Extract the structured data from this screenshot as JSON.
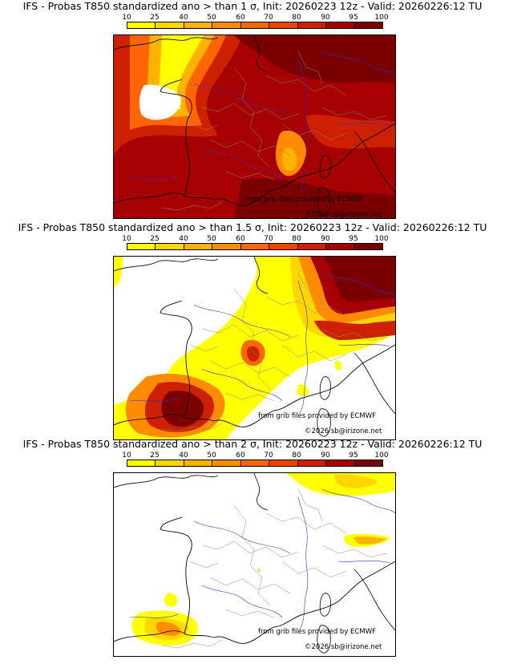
{
  "colorbar": {
    "ticks": [
      "10",
      "25",
      "40",
      "50",
      "60",
      "70",
      "80",
      "90",
      "95",
      "100"
    ],
    "colors": [
      "#ffff00",
      "#ffd700",
      "#ffb300",
      "#ff8c00",
      "#ff6600",
      "#ee4400",
      "#cc2000",
      "#a60000",
      "#7a0000"
    ]
  },
  "panels": [
    {
      "title": "IFS - Probas T850  standardized ano > than 1 σ, Init: 20260223 12z - Valid: 20260226:12 TU",
      "threshold_sigma": 1,
      "credit": "from grib files provided by ECMWF",
      "copyright": "©2026 sb@irizone.net"
    },
    {
      "title": "IFS - Probas T850  standardized ano > than 1.5 σ, Init: 20260223 12z - Valid: 20260226:12 TU",
      "threshold_sigma": 1.5,
      "credit": "from grib files provided by ECMWF",
      "copyright": "©2026 sb@irizone.net"
    },
    {
      "title": "IFS - Probas T850  standardized ano > than 2 σ, Init: 20260223 12z - Valid: 20260226:12 TU",
      "threshold_sigma": 2,
      "credit": "from grib files provided by ECMWF",
      "copyright": "©2026 sb@irizone.net"
    }
  ]
}
